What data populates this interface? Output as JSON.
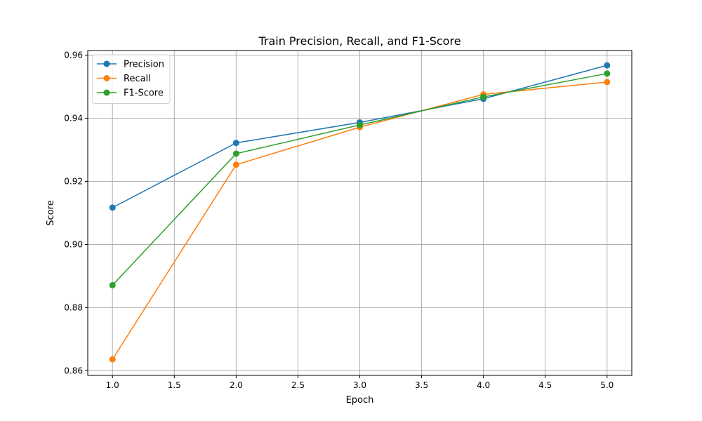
{
  "chart_data": {
    "type": "line",
    "title": "Train Precision, Recall, and F1-Score",
    "xlabel": "Epoch",
    "ylabel": "Score",
    "x": [
      1,
      2,
      3,
      4,
      5
    ],
    "xlim": [
      0.8,
      5.2
    ],
    "ylim": [
      0.8585,
      0.9615
    ],
    "xticks": [
      1.0,
      1.5,
      2.0,
      2.5,
      3.0,
      3.5,
      4.0,
      4.5,
      5.0
    ],
    "xtick_labels": [
      "1.0",
      "1.5",
      "2.0",
      "2.5",
      "3.0",
      "3.5",
      "4.0",
      "4.5",
      "5.0"
    ],
    "yticks": [
      0.86,
      0.88,
      0.9,
      0.92,
      0.94,
      0.96
    ],
    "ytick_labels": [
      "0.86",
      "0.88",
      "0.90",
      "0.92",
      "0.94",
      "0.96"
    ],
    "grid": true,
    "legend_position": "top-left",
    "series": [
      {
        "name": "Precision",
        "color": "#1f77b4",
        "values": [
          0.9117,
          0.9322,
          0.9387,
          0.9462,
          0.9568
        ]
      },
      {
        "name": "Recall",
        "color": "#ff7f0e",
        "values": [
          0.8636,
          0.9253,
          0.9372,
          0.9476,
          0.9515
        ]
      },
      {
        "name": "F1-Score",
        "color": "#2ca02c",
        "values": [
          0.8871,
          0.9288,
          0.9379,
          0.9468,
          0.9542
        ]
      }
    ]
  }
}
